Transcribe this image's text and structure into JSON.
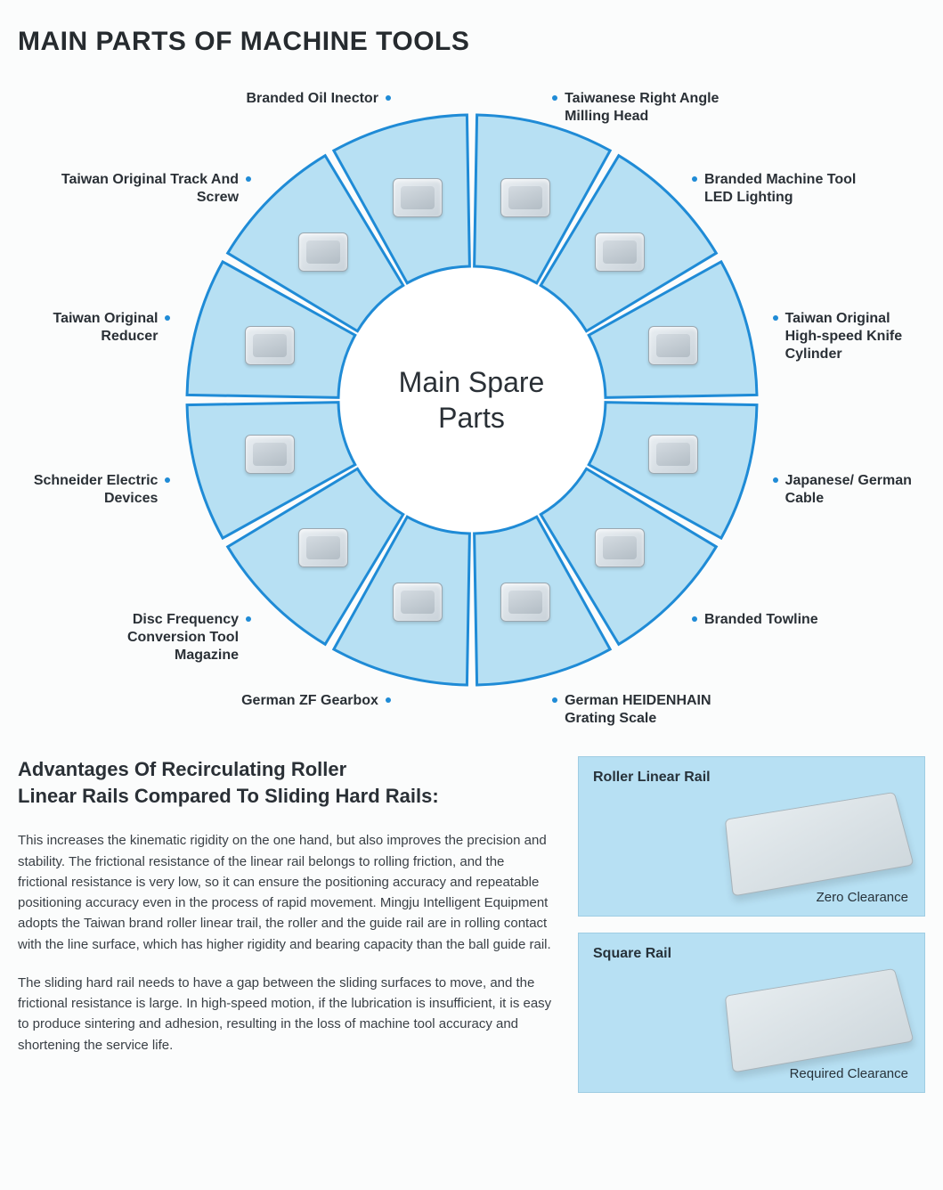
{
  "page_title": "MAIN PARTS OF MACHINE TOOLS",
  "wheel": {
    "center_label_line1": "Main Spare",
    "center_label_line2": "Parts",
    "outer_radius": 320,
    "inner_radius": 150,
    "sector_fill": "#b7e0f3",
    "sector_stroke": "#1f8bd6",
    "sector_stroke_width": 3,
    "gap_deg": 2,
    "label_color": "#2a3036",
    "dot_color": "#1f8bd6",
    "center_font_size": 32,
    "parts": [
      {
        "label": "Taiwanese Right Angle Milling Head",
        "side": "right"
      },
      {
        "label": "Branded Machine Tool LED Lighting",
        "side": "right"
      },
      {
        "label": "Taiwan Original High-speed Knife Cylinder",
        "side": "right"
      },
      {
        "label": "Japanese/ German Cable",
        "side": "right"
      },
      {
        "label": "Branded Towline",
        "side": "right"
      },
      {
        "label": "German HEIDENHAIN Grating Scale",
        "side": "right"
      },
      {
        "label": "German ZF Gearbox",
        "side": "left"
      },
      {
        "label": "Disc Frequency Conversion Tool Magazine",
        "side": "left"
      },
      {
        "label": "Schneider Electric Devices",
        "side": "left"
      },
      {
        "label": "Taiwan Original Reducer",
        "side": "left"
      },
      {
        "label": "Taiwan Original Track And Screw",
        "side": "left"
      },
      {
        "label": "Branded Oil Inector",
        "side": "left"
      }
    ]
  },
  "article": {
    "heading_line1": "Advantages Of Recirculating Roller",
    "heading_line2": "Linear Rails Compared To Sliding Hard Rails:",
    "para1": "This increases the kinematic rigidity on the one hand, but also improves the precision and stability. The frictional resistance of the linear rail belongs to rolling friction, and the frictional resistance is very low, so it can ensure the positioning accuracy and repeatable positioning accuracy even in the process of rapid movement. Mingju Intelligent Equipment adopts the Taiwan brand roller linear trail, the roller and the guide rail are in rolling contact with the line surface, which has higher rigidity and bearing capacity than the ball guide rail.",
    "para2": "The sliding hard rail needs to have a gap between the sliding surfaces to move, and the frictional resistance is large. In high-speed motion, if the lubrication is insufficient, it is easy to produce sintering and adhesion, resulting in the loss of machine tool accuracy and shortening the service life."
  },
  "cards": {
    "bg": "#b7e0f3",
    "card1_title": "Roller Linear Rail",
    "card1_caption": "Zero Clearance",
    "card2_title": "Square Rail",
    "card2_caption": "Required Clearance"
  }
}
